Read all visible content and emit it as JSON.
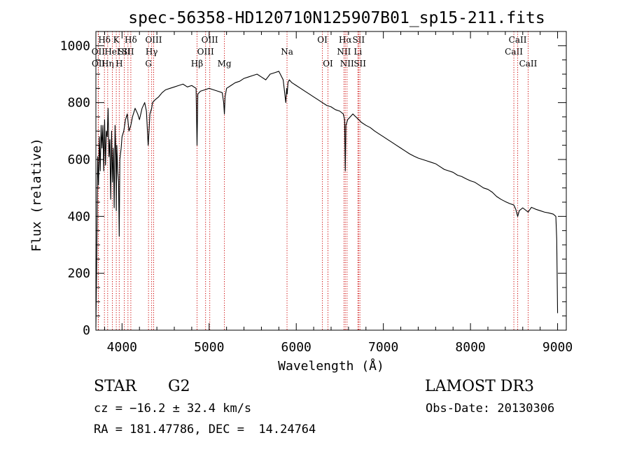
{
  "chart_data": {
    "type": "line",
    "title": "spec-56358-HD120710N125907B01_sp15-211.fits",
    "xlabel": "Wavelength (Å)",
    "ylabel": "Flux (relative)",
    "xlim": [
      3700,
      9100
    ],
    "ylim": [
      0,
      1050
    ],
    "x_ticks": [
      4000,
      5000,
      6000,
      7000,
      8000,
      9000
    ],
    "x_tick_labels": [
      "4000",
      "5000",
      "6000",
      "7000",
      "8000",
      "9000"
    ],
    "y_ticks": [
      0,
      200,
      400,
      600,
      800,
      1000
    ],
    "y_tick_labels": [
      "0",
      "200",
      "400",
      "600",
      "800",
      "1000"
    ],
    "x_minor_step": 200,
    "y_minor_step": 50,
    "grid": false,
    "line_color": "#000000",
    "marker_color": "#cc0000",
    "series": [
      {
        "name": "spectrum",
        "x": [
          3700,
          3710,
          3720,
          3730,
          3740,
          3750,
          3760,
          3770,
          3780,
          3790,
          3800,
          3810,
          3820,
          3830,
          3840,
          3850,
          3860,
          3870,
          3880,
          3890,
          3900,
          3910,
          3920,
          3930,
          3934,
          3940,
          3950,
          3960,
          3968,
          3975,
          3990,
          4000,
          4020,
          4040,
          4060,
          4080,
          4101,
          4120,
          4150,
          4180,
          4200,
          4230,
          4260,
          4280,
          4300,
          4310,
          4320,
          4340,
          4350,
          4380,
          4420,
          4460,
          4500,
          4550,
          4600,
          4650,
          4700,
          4750,
          4800,
          4850,
          4861,
          4870,
          4900,
          4950,
          5000,
          5050,
          5100,
          5150,
          5167,
          5175,
          5183,
          5200,
          5250,
          5300,
          5350,
          5400,
          5450,
          5500,
          5550,
          5600,
          5650,
          5700,
          5750,
          5800,
          5850,
          5880,
          5890,
          5896,
          5905,
          5920,
          5950,
          6000,
          6050,
          6100,
          6150,
          6200,
          6250,
          6300,
          6350,
          6400,
          6450,
          6500,
          6540,
          6555,
          6563,
          6570,
          6590,
          6650,
          6700,
          6750,
          6800,
          6850,
          6900,
          6950,
          7000,
          7050,
          7100,
          7150,
          7200,
          7250,
          7300,
          7350,
          7400,
          7450,
          7500,
          7550,
          7600,
          7650,
          7700,
          7750,
          7800,
          7850,
          7900,
          7950,
          8000,
          8050,
          8100,
          8150,
          8200,
          8250,
          8300,
          8350,
          8400,
          8450,
          8498,
          8520,
          8542,
          8560,
          8600,
          8662,
          8700,
          8750,
          8800,
          8850,
          8900,
          8950,
          8980,
          8990,
          9000
        ],
        "y": [
          10,
          270,
          610,
          510,
          680,
          560,
          720,
          640,
          720,
          560,
          740,
          580,
          700,
          680,
          780,
          610,
          670,
          460,
          700,
          520,
          640,
          430,
          720,
          610,
          420,
          650,
          560,
          520,
          330,
          600,
          640,
          680,
          700,
          740,
          760,
          700,
          720,
          750,
          780,
          760,
          740,
          780,
          800,
          770,
          650,
          700,
          760,
          780,
          800,
          810,
          820,
          835,
          845,
          850,
          855,
          860,
          865,
          855,
          860,
          850,
          650,
          830,
          840,
          845,
          850,
          845,
          840,
          835,
          800,
          760,
          820,
          850,
          860,
          870,
          875,
          885,
          890,
          895,
          900,
          890,
          880,
          900,
          905,
          910,
          880,
          800,
          850,
          830,
          870,
          880,
          870,
          860,
          850,
          840,
          830,
          820,
          810,
          800,
          790,
          785,
          775,
          770,
          760,
          740,
          560,
          720,
          740,
          760,
          745,
          730,
          720,
          712,
          700,
          690,
          680,
          670,
          660,
          650,
          640,
          630,
          620,
          612,
          605,
          600,
          595,
          590,
          585,
          575,
          565,
          560,
          555,
          545,
          540,
          532,
          525,
          520,
          510,
          500,
          495,
          485,
          470,
          460,
          452,
          445,
          440,
          425,
          400,
          420,
          430,
          415,
          432,
          425,
          420,
          415,
          412,
          408,
          400,
          320,
          60
        ]
      }
    ],
    "line_markers": [
      {
        "wl": 3727,
        "label": "OII",
        "row": 2
      },
      {
        "wl": 3729,
        "label": "OII",
        "row": 3
      },
      {
        "wl": 3798,
        "label": "Hδ",
        "row": 1
      },
      {
        "wl": 3835,
        "label": "Hη",
        "row": 3
      },
      {
        "wl": 3889,
        "label": "HeI",
        "row": 2
      },
      {
        "wl": 3934,
        "label": "K",
        "row": 1
      },
      {
        "wl": 3968,
        "label": "H",
        "row": 3
      },
      {
        "wl": 4026,
        "label": "SII",
        "row": 2
      },
      {
        "wl": 4068,
        "label": "SII",
        "row": 2
      },
      {
        "wl": 4101,
        "label": "Hδ",
        "row": 1
      },
      {
        "wl": 4304,
        "label": "G",
        "row": 3
      },
      {
        "wl": 4340,
        "label": "Hγ",
        "row": 2
      },
      {
        "wl": 4363,
        "label": "OIII",
        "row": 1
      },
      {
        "wl": 4861,
        "label": "Hβ",
        "row": 3
      },
      {
        "wl": 4959,
        "label": "OIII",
        "row": 2
      },
      {
        "wl": 5007,
        "label": "OIII",
        "row": 1
      },
      {
        "wl": 5175,
        "label": "Mg",
        "row": 3
      },
      {
        "wl": 5894,
        "label": "Na",
        "row": 2
      },
      {
        "wl": 6300,
        "label": "OI",
        "row": 1
      },
      {
        "wl": 6364,
        "label": "OI",
        "row": 3
      },
      {
        "wl": 6548,
        "label": "NII",
        "row": 2
      },
      {
        "wl": 6563,
        "label": "Hα",
        "row": 1
      },
      {
        "wl": 6583,
        "label": "NII",
        "row": 3
      },
      {
        "wl": 6708,
        "label": "Li",
        "row": 2
      },
      {
        "wl": 6716,
        "label": "SII",
        "row": 1
      },
      {
        "wl": 6731,
        "label": "SII",
        "row": 3
      },
      {
        "wl": 8498,
        "label": "CaII",
        "row": 2
      },
      {
        "wl": 8542,
        "label": "CaII",
        "row": 1
      },
      {
        "wl": 8662,
        "label": "CaII",
        "row": 3
      }
    ]
  },
  "info": {
    "object_class": "STAR",
    "subclass": "G2",
    "survey": "LAMOST DR3",
    "redshift": "cz = −16.2 ± 32.4 km/s",
    "obs_date": "Obs-Date: 20130306",
    "coords": "RA = 181.47786, DEC =  14.24764"
  }
}
